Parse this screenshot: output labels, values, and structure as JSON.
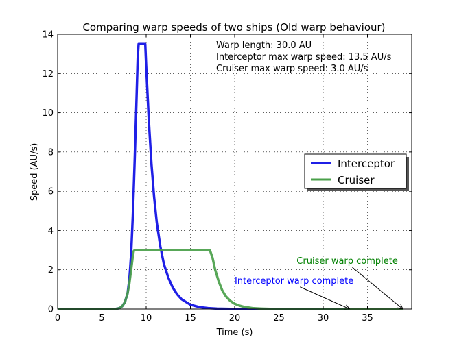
{
  "chart_data": {
    "type": "line",
    "title": "Comparing warp speeds of two ships (Old warp behaviour)",
    "xlabel": "Time (s)",
    "ylabel": "Speed (AU/s)",
    "xlim": [
      0,
      40
    ],
    "ylim": [
      0,
      14
    ],
    "xticks": [
      0,
      5,
      10,
      15,
      20,
      25,
      30,
      35
    ],
    "yticks": [
      0,
      2,
      4,
      6,
      8,
      10,
      12,
      14
    ],
    "grid": true,
    "legend_position": "center-right",
    "info_lines": [
      "Warp length: 30.0 AU",
      "Interceptor max warp speed: 13.5 AU/s",
      "Cruiser max warp speed: 3.0 AU/s"
    ],
    "series": [
      {
        "name": "Interceptor",
        "color": "#1f1fe6",
        "x": [
          0,
          6.5,
          7.0,
          7.3,
          7.6,
          7.9,
          8.1,
          8.3,
          8.5,
          8.7,
          8.9,
          9.05,
          9.15,
          9.9,
          10.0,
          10.3,
          10.6,
          10.9,
          11.2,
          11.6,
          12.0,
          12.5,
          13.0,
          13.5,
          14.0,
          15.0,
          16.0,
          17.0,
          18.0,
          20.0,
          23.0,
          26.0,
          30.0,
          33.0
        ],
        "y": [
          0,
          0,
          0.05,
          0.15,
          0.35,
          0.8,
          1.5,
          2.8,
          4.8,
          7.5,
          10.5,
          12.8,
          13.5,
          13.5,
          12.4,
          9.6,
          7.4,
          5.7,
          4.4,
          3.2,
          2.3,
          1.6,
          1.1,
          0.75,
          0.5,
          0.22,
          0.1,
          0.05,
          0.02,
          0.005,
          0,
          0,
          0,
          0
        ]
      },
      {
        "name": "Cruiser",
        "color": "#4aa04a",
        "x": [
          0,
          6.5,
          7.0,
          7.3,
          7.6,
          7.9,
          8.1,
          8.3,
          8.5,
          8.6,
          8.7,
          17.2,
          17.5,
          17.8,
          18.2,
          18.6,
          19.0,
          19.5,
          20.0,
          20.5,
          21.0,
          22.0,
          23.0,
          24.0,
          26.0,
          30.0,
          35.0,
          39.0
        ],
        "y": [
          0,
          0,
          0.05,
          0.15,
          0.35,
          0.8,
          1.3,
          2.0,
          2.7,
          2.95,
          3.0,
          3.0,
          2.6,
          2.0,
          1.4,
          0.95,
          0.65,
          0.42,
          0.27,
          0.18,
          0.12,
          0.05,
          0.02,
          0.01,
          0,
          0,
          0,
          0
        ]
      }
    ],
    "annotations": [
      {
        "text": "Interceptor warp complete",
        "color": "#0000ff",
        "x": 20,
        "y": 1.3,
        "arrow_to_x": 33.0,
        "arrow_to_y": 0
      },
      {
        "text": "Cruiser warp complete",
        "color": "#008000",
        "x": 27,
        "y": 2.3,
        "arrow_to_x": 39.0,
        "arrow_to_y": 0
      }
    ]
  }
}
